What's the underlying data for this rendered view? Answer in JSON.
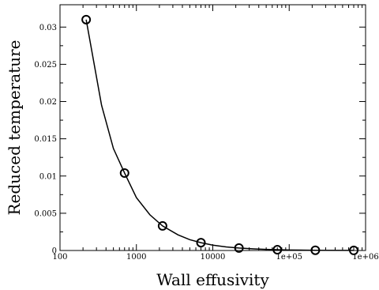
{
  "chart_data": {
    "type": "scatter",
    "title": "",
    "xlabel": "Wall effusivity",
    "ylabel": "Reduced temperature",
    "x_scale": "log",
    "xlim": [
      100,
      1000000
    ],
    "ylim": [
      0,
      0.033
    ],
    "grid": false,
    "legend": "none",
    "x_ticks": [
      {
        "value": 100,
        "label": "100"
      },
      {
        "value": 1000,
        "label": "1000"
      },
      {
        "value": 10000,
        "label": "10000"
      },
      {
        "value": 100000,
        "label": "1e+05"
      },
      {
        "value": 1000000,
        "label": "1e+06"
      }
    ],
    "y_ticks": [
      {
        "value": 0,
        "label": "0"
      },
      {
        "value": 0.005,
        "label": "0.005"
      },
      {
        "value": 0.01,
        "label": "0.01"
      },
      {
        "value": 0.015,
        "label": "0.015"
      },
      {
        "value": 0.02,
        "label": "0.02"
      },
      {
        "value": 0.025,
        "label": "0.025"
      },
      {
        "value": 0.03,
        "label": "0.03"
      }
    ],
    "series": [
      {
        "marker": "circle",
        "x": [
          220,
          700,
          2200,
          7000,
          22000,
          70000,
          220000,
          700000
        ],
        "y": [
          0.031,
          0.0104,
          0.0033,
          0.00105,
          0.00033,
          0.0001,
          3e-05,
          1e-05
        ]
      },
      {
        "line": "solid",
        "x": [
          220,
          350,
          500,
          700,
          1000,
          1500,
          2200,
          3500,
          5000,
          7000,
          10000,
          15000,
          22000,
          35000,
          50000,
          70000,
          100000,
          220000,
          700000
        ],
        "y": [
          0.031,
          0.0195,
          0.0137,
          0.0104,
          0.0071,
          0.0048,
          0.0033,
          0.0021,
          0.00145,
          0.00105,
          0.00072,
          0.00048,
          0.00033,
          0.00021,
          0.000145,
          0.0001,
          7e-05,
          3e-05,
          1e-05
        ]
      }
    ],
    "colors": {
      "line": "#000000",
      "marker": "#000000",
      "frame": "#000000"
    }
  }
}
